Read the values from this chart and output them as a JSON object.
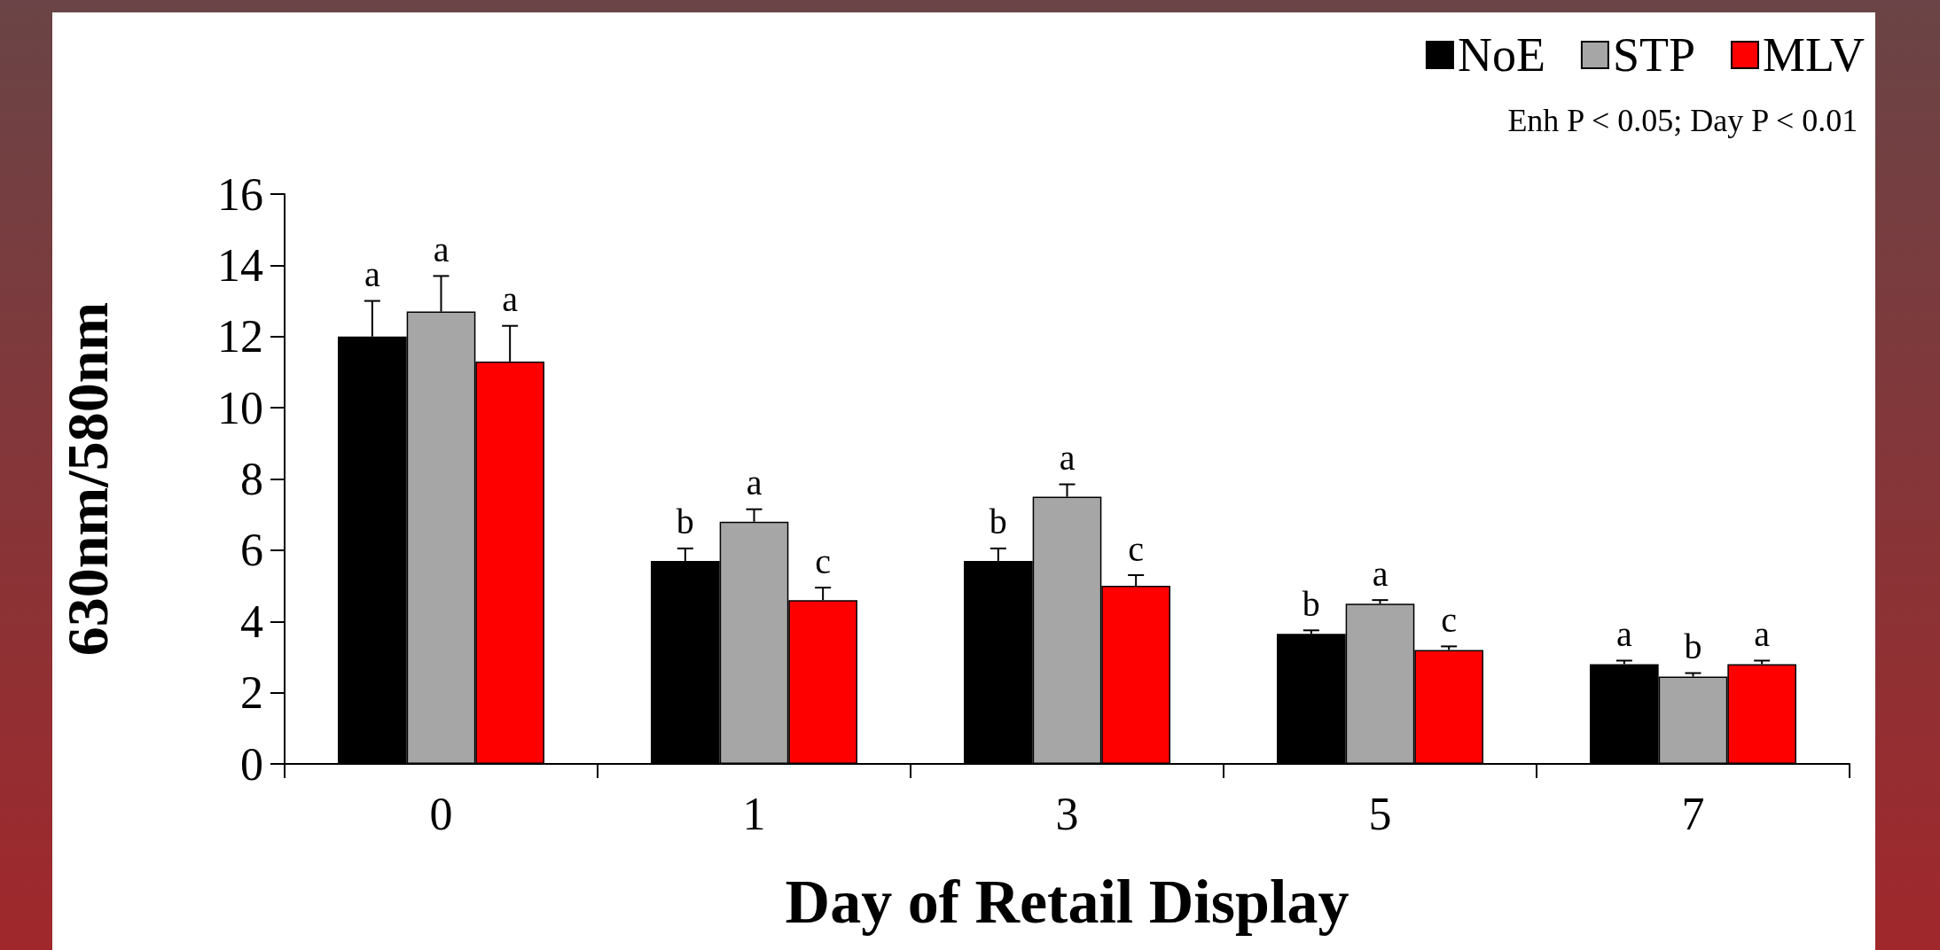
{
  "chart_data": {
    "type": "bar",
    "xlabel": "Day of Retail Display",
    "ylabel": "630nm/580nm",
    "categories": [
      "0",
      "1",
      "3",
      "5",
      "7"
    ],
    "series": [
      {
        "name": "NoE",
        "color": "#000000",
        "values": [
          12.0,
          5.7,
          5.7,
          3.65,
          2.8
        ],
        "errors": [
          [
            12.0,
            13.0
          ],
          [
            5.7,
            6.05
          ],
          [
            5.7,
            6.05
          ],
          [
            3.65,
            3.75
          ],
          [
            2.8,
            2.9
          ]
        ],
        "value_labels": [
          "a",
          "b",
          "b",
          "b",
          "a"
        ]
      },
      {
        "name": "STP",
        "color": "#a6a6a6",
        "values": [
          12.7,
          6.8,
          7.5,
          4.5,
          2.45
        ],
        "errors": [
          [
            12.7,
            13.7
          ],
          [
            6.8,
            7.15
          ],
          [
            7.5,
            7.85
          ],
          [
            4.5,
            4.6
          ],
          [
            2.45,
            2.55
          ]
        ],
        "value_labels": [
          "a",
          "a",
          "a",
          "a",
          "b"
        ]
      },
      {
        "name": "MLV",
        "color": "#ff0000",
        "values": [
          11.3,
          4.6,
          5.0,
          3.2,
          2.8
        ],
        "errors": [
          [
            11.3,
            12.3
          ],
          [
            4.6,
            4.95
          ],
          [
            5.0,
            5.3
          ],
          [
            3.2,
            3.3
          ],
          [
            2.8,
            2.9
          ]
        ],
        "value_labels": [
          "a",
          "c",
          "c",
          "c",
          "a"
        ]
      }
    ],
    "ylim": [
      0,
      16
    ],
    "yticks": [
      0,
      2,
      4,
      6,
      8,
      10,
      12,
      14,
      16
    ],
    "legend": "top right",
    "annotations": [
      "Enh P < 0.05; Day P < 0.01"
    ]
  }
}
